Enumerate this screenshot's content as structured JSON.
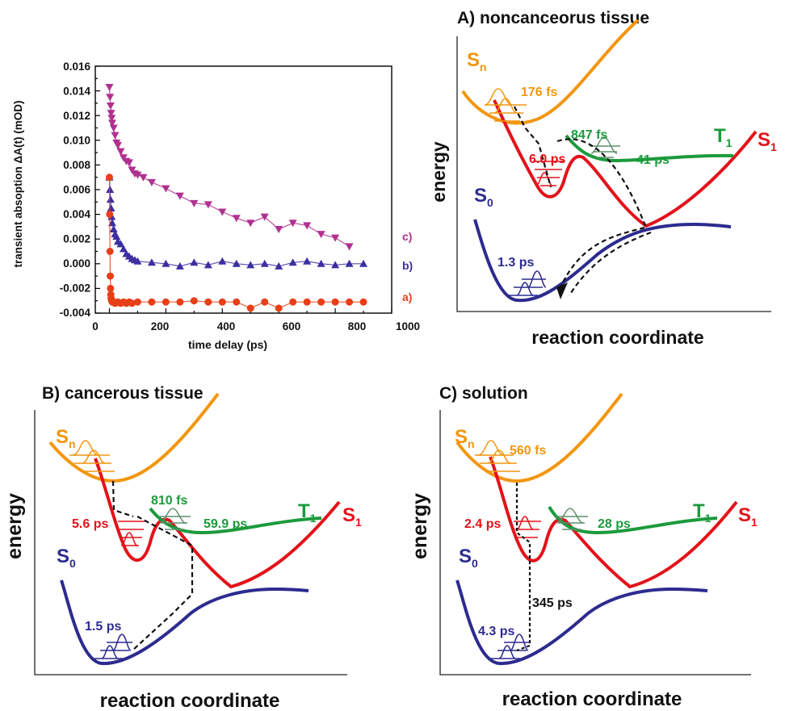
{
  "colors": {
    "orange": "#f2960e",
    "red": "#e3121a",
    "green": "#1c9a3c",
    "navy": "#2d2b8f",
    "magenta": "#b0308f",
    "blue_tri": "#3c2fa0",
    "circle_red": "#e83f18",
    "black": "#111111"
  },
  "chart": {
    "ylabel": "transient absoption ΔA(t) (mOD)",
    "xlabel": "time delay (ps)",
    "yticks": [
      "0.016",
      "0.014",
      "0.012",
      "0.010",
      "0.008",
      "0.006",
      "0.004",
      "0.002",
      "0.000",
      "-0.002",
      "-0.004"
    ],
    "xticks": [
      "0",
      "200",
      "400",
      "600",
      "800",
      "1000"
    ],
    "curve_labels": [
      "c)",
      "b)",
      "a)"
    ]
  },
  "chart_data": {
    "type": "scatter",
    "xlabel": "time delay (ps)",
    "ylabel": "transient absoption ΔA(t) (mOD)",
    "xlim": [
      -50,
      1000
    ],
    "ylim": [
      -0.004,
      0.016
    ],
    "series": [
      {
        "name": "c)",
        "marker": "triangle-down",
        "color": "#b0308f",
        "x": [
          0,
          2,
          4,
          6,
          8,
          10,
          15,
          20,
          25,
          30,
          40,
          50,
          60,
          70,
          80,
          90,
          100,
          120,
          150,
          200,
          250,
          300,
          350,
          400,
          450,
          500,
          550,
          600,
          650,
          700,
          750,
          800,
          850
        ],
        "y": [
          0.0143,
          0.0135,
          0.0128,
          0.0122,
          0.0118,
          0.0114,
          0.011,
          0.0104,
          0.0098,
          0.0096,
          0.0091,
          0.0086,
          0.0083,
          0.0082,
          0.0076,
          0.0073,
          0.0072,
          0.007,
          0.0066,
          0.0061,
          0.0055,
          0.0049,
          0.0048,
          0.0042,
          0.0037,
          0.0033,
          0.0038,
          0.0028,
          0.0033,
          0.0031,
          0.0024,
          0.0021,
          0.0014
        ]
      },
      {
        "name": "b)",
        "marker": "triangle-up",
        "color": "#3c2fa0",
        "x": [
          0,
          2,
          4,
          6,
          8,
          10,
          15,
          20,
          25,
          30,
          40,
          50,
          60,
          70,
          80,
          90,
          100,
          150,
          200,
          250,
          300,
          350,
          400,
          450,
          500,
          550,
          600,
          650,
          700,
          750,
          800,
          850,
          900
        ],
        "y": [
          0.007,
          0.006,
          0.0052,
          0.0045,
          0.0038,
          0.0033,
          0.0028,
          0.0024,
          0.0022,
          0.0018,
          0.0016,
          0.0012,
          0.0008,
          0.0006,
          0.0004,
          0.0003,
          0.0002,
          0.0001,
          0.0,
          -0.0002,
          0.0001,
          -0.0001,
          0.0002,
          0.0,
          -0.0001,
          0.0,
          -0.0002,
          0.0001,
          0.0002,
          0.0,
          -0.0001,
          0.0,
          0.0
        ]
      },
      {
        "name": "a)",
        "marker": "circle",
        "color": "#e83f18",
        "x": [
          0,
          1,
          2,
          3,
          4,
          5,
          6,
          8,
          10,
          15,
          20,
          30,
          40,
          50,
          60,
          70,
          80,
          100,
          150,
          200,
          250,
          300,
          350,
          400,
          450,
          500,
          550,
          600,
          650,
          700,
          750,
          800,
          850,
          900
        ],
        "y": [
          0.007,
          0.004,
          0.001,
          -0.001,
          -0.002,
          -0.0025,
          -0.0028,
          -0.003,
          -0.0031,
          -0.0031,
          -0.0032,
          -0.0031,
          -0.0032,
          -0.0031,
          -0.0032,
          -0.0031,
          -0.0032,
          -0.0031,
          -0.0031,
          -0.0031,
          -0.0031,
          -0.003,
          -0.0031,
          -0.0031,
          -0.0031,
          -0.0036,
          -0.0031,
          -0.0036,
          -0.0031,
          -0.0031,
          -0.0031,
          -0.0031,
          -0.0031,
          -0.0031
        ]
      }
    ]
  },
  "panelA": {
    "title": "A) noncanceorus tissue",
    "ylabel": "energy",
    "xlabel": "reaction coordinate",
    "Sn": "S",
    "Sn_sub": "n",
    "S1": "S",
    "S1_sub": "1",
    "T1": "T",
    "T1_sub": "1",
    "S0": "S",
    "S0_sub": "0",
    "t_sn": "176 fs",
    "t_s1": "6.0 ps",
    "t_isc": "847 fs",
    "t_t1": "41 ps",
    "t_s0": "1.3 ps"
  },
  "panelB": {
    "title": "B) cancerous tissue",
    "ylabel": "energy",
    "xlabel": "reaction coordinate",
    "Sn": "S",
    "Sn_sub": "n",
    "S1": "S",
    "S1_sub": "1",
    "T1": "T",
    "T1_sub": "1",
    "S0": "S",
    "S0_sub": "0",
    "t_s1": "5.6 ps",
    "t_isc": "810 fs",
    "t_t1": "59.9 ps",
    "t_s0": "1.5 ps"
  },
  "panelC": {
    "title": "C) solution",
    "ylabel": "energy",
    "xlabel": "reaction coordinate",
    "Sn": "S",
    "Sn_sub": "n",
    "S1": "S",
    "S1_sub": "1",
    "T1": "T",
    "T1_sub": "1",
    "S0": "S",
    "S0_sub": "0",
    "t_sn": "560 fs",
    "t_s1": "2.4 ps",
    "t_t1": "28 ps",
    "t_long": "345 ps",
    "t_s0": "4.3 ps"
  }
}
